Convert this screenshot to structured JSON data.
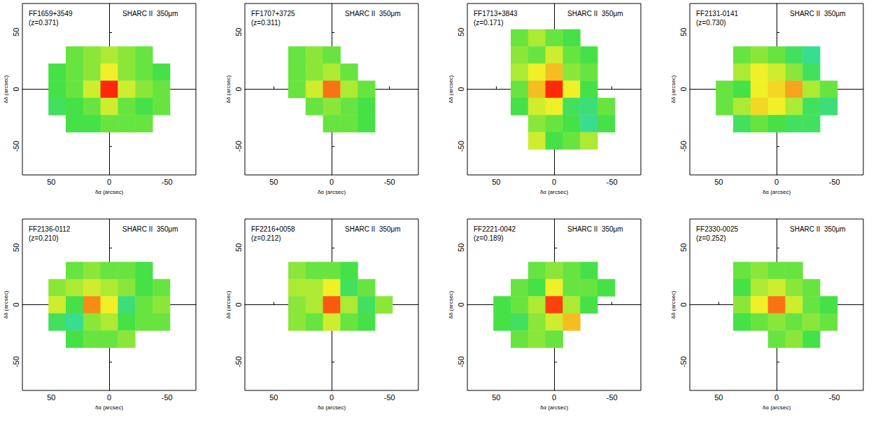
{
  "chart_data": [
    {
      "type": "heatmap",
      "title": "FF1659+3549",
      "subtitle": "(z=0.371)",
      "annotation": "SHARC II  350μm",
      "xlabel": "δα (arcsec)",
      "ylabel": "δδ (arcsec)",
      "xlim": [
        75,
        -75
      ],
      "ylim": [
        -75,
        75
      ],
      "xticks": [
        50,
        0,
        -50
      ],
      "yticks": [
        -50,
        0,
        50
      ],
      "x": [
        45,
        30,
        15,
        0,
        -15,
        -30,
        -45
      ],
      "y": [
        45,
        30,
        15,
        0,
        -15,
        -30,
        -45
      ],
      "zlim": [
        0,
        1
      ],
      "z": [
        [
          null,
          null,
          null,
          null,
          null,
          null,
          null
        ],
        [
          null,
          0.4,
          0.45,
          0.5,
          0.45,
          0.4,
          null
        ],
        [
          0.35,
          0.4,
          0.45,
          0.6,
          0.45,
          0.4,
          0.35
        ],
        [
          0.35,
          0.4,
          0.55,
          1.0,
          0.55,
          0.45,
          0.4
        ],
        [
          0.3,
          0.35,
          0.4,
          0.55,
          0.4,
          0.35,
          0.4
        ],
        [
          null,
          0.35,
          0.35,
          0.4,
          0.4,
          0.4,
          null
        ],
        [
          null,
          null,
          null,
          null,
          null,
          null,
          null
        ]
      ]
    },
    {
      "type": "heatmap",
      "title": "FF1707+3725",
      "subtitle": "(z=0.311)",
      "annotation": "SHARC II  350μm",
      "xlabel": "δα (arcsec)",
      "ylabel": "δδ (arcsec)",
      "xlim": [
        75,
        -75
      ],
      "ylim": [
        -75,
        75
      ],
      "xticks": [
        50,
        0,
        -50
      ],
      "yticks": [
        -50,
        0,
        50
      ],
      "x": [
        45,
        30,
        15,
        0,
        -15,
        -30,
        -45
      ],
      "y": [
        45,
        30,
        15,
        0,
        -15,
        -30,
        -45
      ],
      "zlim": [
        0,
        1
      ],
      "z": [
        [
          null,
          null,
          null,
          null,
          null,
          null,
          null
        ],
        [
          null,
          0.4,
          0.45,
          0.4,
          null,
          null,
          null
        ],
        [
          null,
          0.4,
          0.45,
          0.5,
          0.4,
          null,
          null
        ],
        [
          null,
          0.4,
          0.55,
          0.85,
          0.5,
          0.4,
          null
        ],
        [
          null,
          null,
          0.4,
          0.45,
          0.4,
          0.35,
          null
        ],
        [
          null,
          null,
          null,
          0.4,
          0.4,
          0.35,
          null
        ],
        [
          null,
          null,
          null,
          null,
          null,
          null,
          null
        ]
      ]
    },
    {
      "type": "heatmap",
      "title": "FF1713+3843",
      "subtitle": "(z=0.171)",
      "annotation": "SHARC II  350μm",
      "xlabel": "δα (arcsec)",
      "ylabel": "δδ (arcsec)",
      "xlim": [
        75,
        -75
      ],
      "ylim": [
        -75,
        75
      ],
      "xticks": [
        50,
        0,
        -50
      ],
      "yticks": [
        -50,
        0,
        50
      ],
      "x": [
        45,
        30,
        15,
        0,
        -15,
        -30,
        -45
      ],
      "y": [
        45,
        30,
        15,
        0,
        -15,
        -30,
        -45
      ],
      "zlim": [
        0,
        1
      ],
      "z": [
        [
          null,
          0.4,
          0.5,
          0.4,
          0.35,
          null,
          null
        ],
        [
          null,
          0.45,
          0.4,
          0.55,
          0.4,
          0.35,
          null
        ],
        [
          null,
          0.5,
          0.6,
          0.7,
          0.45,
          0.4,
          null
        ],
        [
          null,
          0.4,
          0.7,
          1.0,
          0.6,
          0.35,
          null
        ],
        [
          null,
          0.35,
          0.55,
          0.6,
          0.3,
          0.25,
          0.4
        ],
        [
          null,
          null,
          0.45,
          0.4,
          0.35,
          0.2,
          0.35
        ],
        [
          null,
          null,
          0.55,
          0.35,
          0.4,
          0.5,
          null
        ]
      ]
    },
    {
      "type": "heatmap",
      "title": "FF2131-0141",
      "subtitle": "(z=0.730)",
      "annotation": "SHARC II  350μm",
      "xlabel": "δα (arcsec)",
      "ylabel": "δδ (arcsec)",
      "xlim": [
        75,
        -75
      ],
      "ylim": [
        -75,
        75
      ],
      "xticks": [
        50,
        0,
        -50
      ],
      "yticks": [
        -50,
        0,
        50
      ],
      "x": [
        45,
        30,
        15,
        0,
        -15,
        -30,
        -45
      ],
      "y": [
        45,
        30,
        15,
        0,
        -15,
        -30,
        -45
      ],
      "zlim": [
        0,
        1
      ],
      "z": [
        [
          null,
          null,
          null,
          null,
          null,
          null,
          null
        ],
        [
          null,
          0.4,
          0.45,
          0.4,
          0.3,
          0.2,
          null
        ],
        [
          null,
          0.5,
          0.6,
          0.55,
          0.45,
          0.3,
          null
        ],
        [
          0.4,
          0.35,
          0.6,
          0.65,
          0.75,
          0.5,
          0.4
        ],
        [
          0.4,
          0.5,
          0.65,
          0.6,
          0.5,
          0.3,
          0.25
        ],
        [
          null,
          0.3,
          0.4,
          0.35,
          0.3,
          0.3,
          null
        ],
        [
          null,
          null,
          null,
          null,
          null,
          null,
          null
        ]
      ]
    },
    {
      "type": "heatmap",
      "title": "FF2136-0112",
      "subtitle": "(z=0.210)",
      "annotation": "SHARC II  350μm",
      "xlabel": "δα (arcsec)",
      "ylabel": "δδ (arcsec)",
      "xlim": [
        75,
        -75
      ],
      "ylim": [
        -75,
        75
      ],
      "xticks": [
        50,
        0,
        -50
      ],
      "yticks": [
        -50,
        0,
        50
      ],
      "x": [
        45,
        30,
        15,
        0,
        -15,
        -30,
        -45
      ],
      "y": [
        45,
        30,
        15,
        0,
        -15,
        -30,
        -45
      ],
      "zlim": [
        0,
        1
      ],
      "z": [
        [
          null,
          null,
          null,
          null,
          null,
          null,
          null
        ],
        [
          null,
          0.4,
          0.45,
          0.4,
          0.4,
          0.35,
          null
        ],
        [
          0.45,
          0.5,
          0.55,
          0.5,
          0.45,
          0.35,
          0.4
        ],
        [
          0.55,
          0.35,
          0.8,
          0.6,
          0.25,
          0.4,
          0.45
        ],
        [
          0.3,
          0.2,
          0.45,
          0.5,
          0.35,
          0.4,
          0.4
        ],
        [
          null,
          0.35,
          0.4,
          0.4,
          0.45,
          null,
          null
        ],
        [
          null,
          null,
          null,
          null,
          null,
          null,
          null
        ]
      ]
    },
    {
      "type": "heatmap",
      "title": "FF2216+0058",
      "subtitle": "(z=0.212)",
      "annotation": "SHARC II  350μm",
      "xlabel": "δα (arcsec)",
      "ylabel": "δδ (arcsec)",
      "xlim": [
        75,
        -75
      ],
      "ylim": [
        -75,
        75
      ],
      "xticks": [
        50,
        0,
        -50
      ],
      "yticks": [
        -50,
        0,
        50
      ],
      "x": [
        45,
        30,
        15,
        0,
        -15,
        -30,
        -45
      ],
      "y": [
        45,
        30,
        15,
        0,
        -15,
        -30,
        -45
      ],
      "zlim": [
        0,
        1
      ],
      "z": [
        [
          null,
          null,
          null,
          null,
          null,
          null,
          null
        ],
        [
          null,
          0.45,
          0.4,
          0.4,
          0.35,
          null,
          null
        ],
        [
          null,
          0.5,
          0.5,
          0.6,
          0.3,
          0.4,
          null
        ],
        [
          null,
          0.45,
          0.5,
          0.9,
          0.5,
          0.3,
          0.45
        ],
        [
          null,
          0.45,
          0.4,
          0.55,
          0.4,
          0.35,
          null
        ],
        [
          null,
          null,
          null,
          null,
          null,
          null,
          null
        ],
        [
          null,
          null,
          null,
          null,
          null,
          null,
          null
        ]
      ]
    },
    {
      "type": "heatmap",
      "title": "FF2221-0042",
      "subtitle": "(z=0.189)",
      "annotation": "SHARC II  350μm",
      "xlabel": "δα (arcsec)",
      "ylabel": "δδ (arcsec)",
      "xlim": [
        75,
        -75
      ],
      "ylim": [
        -75,
        75
      ],
      "xticks": [
        50,
        0,
        -50
      ],
      "yticks": [
        -50,
        0,
        50
      ],
      "x": [
        45,
        30,
        15,
        0,
        -15,
        -30,
        -45
      ],
      "y": [
        45,
        30,
        15,
        0,
        -15,
        -30,
        -45
      ],
      "zlim": [
        0,
        1
      ],
      "z": [
        [
          null,
          null,
          null,
          null,
          null,
          null,
          null
        ],
        [
          null,
          null,
          0.4,
          0.45,
          0.4,
          0.35,
          null
        ],
        [
          null,
          0.4,
          0.35,
          0.6,
          0.4,
          0.4,
          0.35
        ],
        [
          0.35,
          0.4,
          0.5,
          0.95,
          0.5,
          0.35,
          null
        ],
        [
          0.35,
          0.3,
          0.45,
          0.55,
          0.7,
          null,
          null
        ],
        [
          null,
          0.4,
          0.45,
          0.4,
          null,
          null,
          null
        ],
        [
          null,
          null,
          null,
          null,
          null,
          null,
          null
        ]
      ]
    },
    {
      "type": "heatmap",
      "title": "FF2330-0025",
      "subtitle": "(z=0.252)",
      "annotation": "SHARC II  350μm",
      "xlabel": "δα (arcsec)",
      "ylabel": "δδ (arcsec)",
      "xlim": [
        75,
        -75
      ],
      "ylim": [
        -75,
        75
      ],
      "xticks": [
        50,
        0,
        -50
      ],
      "yticks": [
        -50,
        0,
        50
      ],
      "x": [
        45,
        30,
        15,
        0,
        -15,
        -30,
        -45
      ],
      "y": [
        45,
        30,
        15,
        0,
        -15,
        -30,
        -45
      ],
      "zlim": [
        0,
        1
      ],
      "z": [
        [
          null,
          null,
          null,
          null,
          null,
          null,
          null
        ],
        [
          null,
          0.4,
          0.45,
          0.4,
          0.4,
          null,
          null
        ],
        [
          null,
          0.35,
          0.5,
          0.55,
          0.45,
          0.4,
          null
        ],
        [
          null,
          0.45,
          0.6,
          0.85,
          0.55,
          0.4,
          0.35
        ],
        [
          null,
          0.35,
          0.4,
          0.45,
          0.4,
          0.45,
          0.4
        ],
        [
          null,
          null,
          null,
          0.4,
          0.45,
          0.35,
          null
        ],
        [
          null,
          null,
          null,
          null,
          null,
          null,
          null
        ]
      ]
    }
  ]
}
